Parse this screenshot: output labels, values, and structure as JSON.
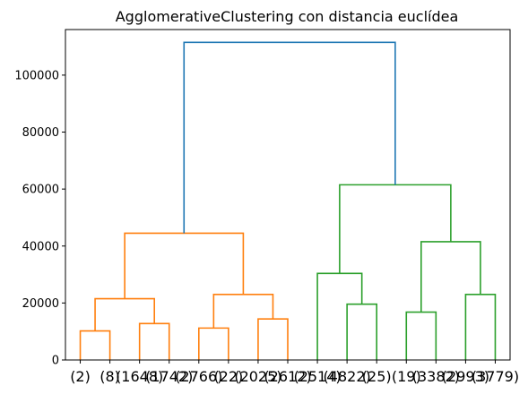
{
  "chart_data": {
    "type": "dendrogram",
    "title": "AgglomerativeClustering con distancia euclídea",
    "xlabel": "",
    "ylabel": "",
    "ylim": [
      0,
      116000
    ],
    "yticks": [
      0,
      20000,
      40000,
      60000,
      80000,
      100000
    ],
    "leaf_labels": [
      "(2)",
      "(8)",
      "(1648)",
      "(1742)",
      "(2766)",
      "(22)",
      "(2025)",
      "(2612)",
      "(2514)",
      "(4822)",
      "(25)",
      "(19)",
      "(3382)",
      "(2993)",
      "(3779)"
    ],
    "colors": {
      "left_cluster": "#ff7f0e",
      "right_cluster": "#2ca02c",
      "root": "#1f77b4"
    },
    "merges": [
      {
        "left": 0,
        "right": 1,
        "height": 10200,
        "color": "left_cluster"
      },
      {
        "left": 2,
        "right": 3,
        "height": 12800,
        "color": "left_cluster"
      },
      {
        "left": "m0",
        "right": "m1",
        "height": 21500,
        "color": "left_cluster"
      },
      {
        "left": 4,
        "right": 5,
        "height": 11200,
        "color": "left_cluster"
      },
      {
        "left": 6,
        "right": 7,
        "height": 14400,
        "color": "left_cluster"
      },
      {
        "left": "m3",
        "right": "m4",
        "height": 23000,
        "color": "left_cluster"
      },
      {
        "left": "m2",
        "right": "m5",
        "height": 44500,
        "color": "left_cluster"
      },
      {
        "left": 9,
        "right": 10,
        "height": 19600,
        "color": "right_cluster"
      },
      {
        "left": 8,
        "right": "m7",
        "height": 30400,
        "color": "right_cluster"
      },
      {
        "left": 11,
        "right": 12,
        "height": 16800,
        "color": "right_cluster"
      },
      {
        "left": 13,
        "right": 14,
        "height": 23000,
        "color": "right_cluster"
      },
      {
        "left": "m9",
        "right": "m10",
        "height": 41500,
        "color": "right_cluster"
      },
      {
        "left": "m8",
        "right": "m11",
        "height": 61500,
        "color": "right_cluster"
      },
      {
        "left": "m6",
        "right": "m12",
        "height": 111500,
        "color": "root"
      }
    ]
  }
}
